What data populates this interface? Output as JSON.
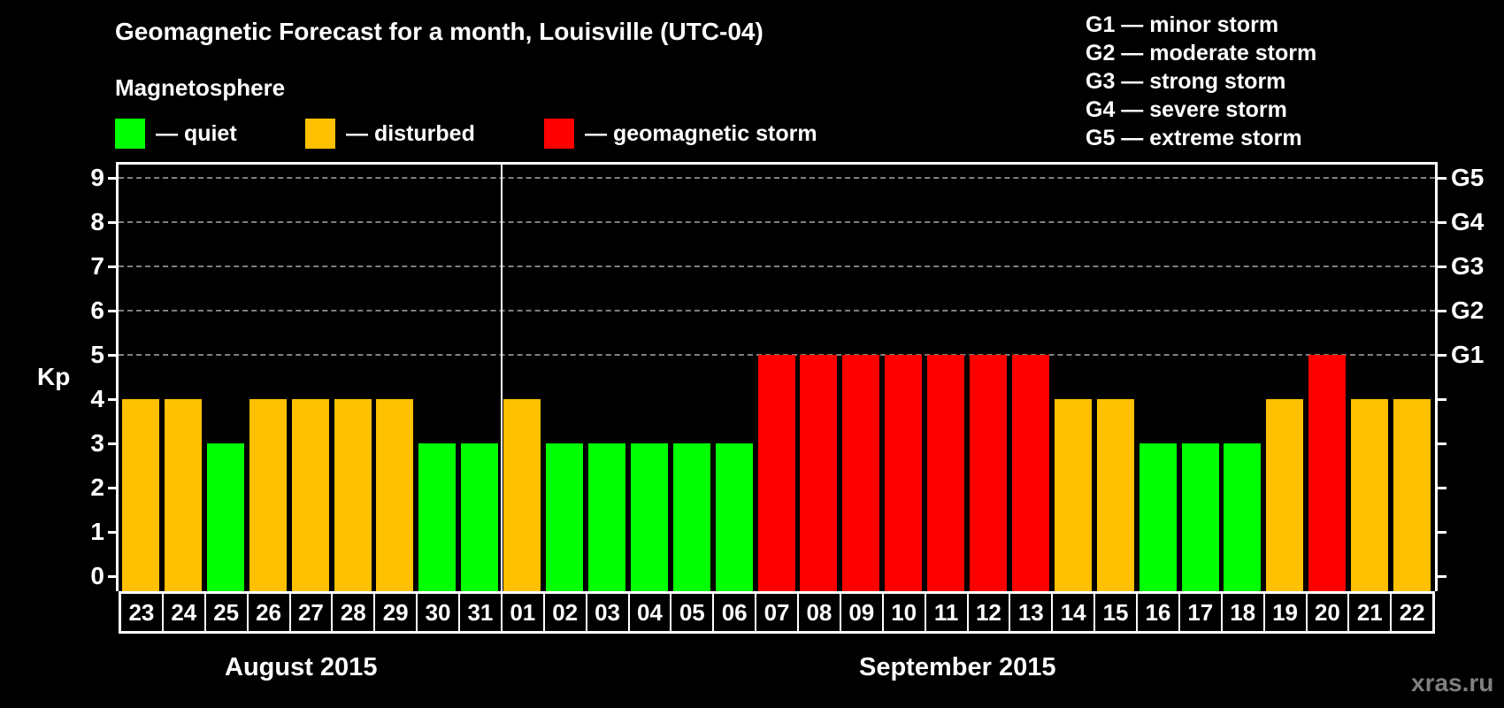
{
  "header": {
    "title": "Geomagnetic Forecast for a month, Louisville (UTC-04)",
    "subtitle": "Magnetosphere"
  },
  "legend": {
    "items": [
      {
        "label": "— quiet",
        "color": "#00ff00"
      },
      {
        "label": "— disturbed",
        "color": "#ffc000"
      },
      {
        "label": "— geomagnetic storm",
        "color": "#ff0000"
      }
    ]
  },
  "storm_scale": {
    "items": [
      "G1 — minor storm",
      "G2 — moderate storm",
      "G3 — strong storm",
      "G4 — severe storm",
      "G5 — extreme storm"
    ]
  },
  "axis": {
    "ylabel": "Kp",
    "yticks": [
      "0",
      "1",
      "2",
      "3",
      "4",
      "5",
      "6",
      "7",
      "8",
      "9"
    ],
    "right_labels": [
      {
        "kp": 5,
        "label": "G1"
      },
      {
        "kp": 6,
        "label": "G2"
      },
      {
        "kp": 7,
        "label": "G3"
      },
      {
        "kp": 8,
        "label": "G4"
      },
      {
        "kp": 9,
        "label": "G5"
      }
    ]
  },
  "months": {
    "first": "August 2015",
    "second": "September 2015"
  },
  "watermark": "xras.ru",
  "colors": {
    "quiet": "#00ff00",
    "disturbed": "#ffc000",
    "storm": "#ff0000",
    "background": "#000000",
    "grid": "#808080"
  },
  "chart_data": {
    "type": "bar",
    "title": "Geomagnetic Forecast for a month, Louisville (UTC-04)",
    "xlabel": "",
    "ylabel": "Kp",
    "ylim": [
      0,
      9
    ],
    "grid": "dashed horizontal at Kp 5-9",
    "legend_position": "top",
    "categories": [
      "23",
      "24",
      "25",
      "26",
      "27",
      "28",
      "29",
      "30",
      "31",
      "01",
      "02",
      "03",
      "04",
      "05",
      "06",
      "07",
      "08",
      "09",
      "10",
      "11",
      "12",
      "13",
      "14",
      "15",
      "16",
      "17",
      "18",
      "19",
      "20",
      "21",
      "22"
    ],
    "month_groups": [
      {
        "label": "August 2015",
        "days": [
          "23",
          "24",
          "25",
          "26",
          "27",
          "28",
          "29",
          "30",
          "31"
        ]
      },
      {
        "label": "September 2015",
        "days": [
          "01",
          "02",
          "03",
          "04",
          "05",
          "06",
          "07",
          "08",
          "09",
          "10",
          "11",
          "12",
          "13",
          "14",
          "15",
          "16",
          "17",
          "18",
          "19",
          "20",
          "21",
          "22"
        ]
      }
    ],
    "values": [
      4,
      4,
      3,
      4,
      4,
      4,
      4,
      3,
      3,
      4,
      3,
      3,
      3,
      3,
      3,
      5,
      5,
      5,
      5,
      5,
      5,
      5,
      4,
      4,
      3,
      3,
      3,
      4,
      5,
      4,
      4
    ],
    "status": [
      "disturbed",
      "disturbed",
      "quiet",
      "disturbed",
      "disturbed",
      "disturbed",
      "disturbed",
      "quiet",
      "quiet",
      "disturbed",
      "quiet",
      "quiet",
      "quiet",
      "quiet",
      "quiet",
      "storm",
      "storm",
      "storm",
      "storm",
      "storm",
      "storm",
      "storm",
      "disturbed",
      "disturbed",
      "quiet",
      "quiet",
      "quiet",
      "disturbed",
      "storm",
      "disturbed",
      "disturbed"
    ],
    "right_axis": {
      "5": "G1",
      "6": "G2",
      "7": "G3",
      "8": "G4",
      "9": "G5"
    }
  }
}
